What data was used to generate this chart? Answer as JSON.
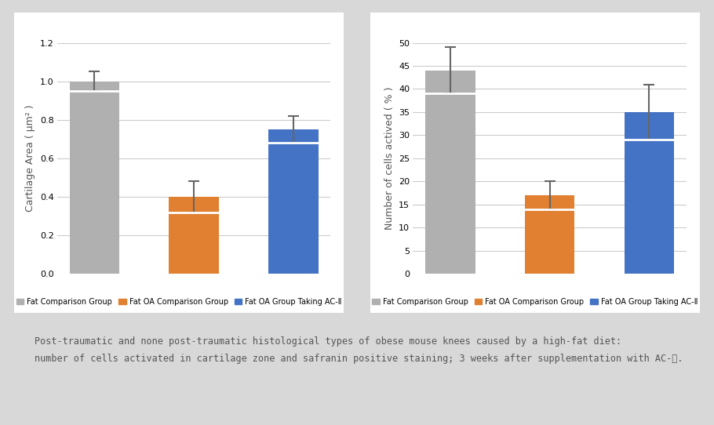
{
  "chart1": {
    "ylabel": "Cartilage Area ( μm² )",
    "categories": [
      "Fat Comparison Group",
      "Fat OA Comparison Group",
      "Fat OA Group Taking AC-Ⅱ"
    ],
    "values": [
      1.0,
      0.4,
      0.75
    ],
    "errors": [
      0.05,
      0.08,
      0.07
    ],
    "colors": [
      "#b0b0b0",
      "#e08030",
      "#4472c4"
    ],
    "ylim": [
      0,
      1.2
    ],
    "yticks": [
      0,
      0.2,
      0.4,
      0.6,
      0.8,
      1.0,
      1.2
    ],
    "legend_labels": [
      "Fat Comparison Group",
      "Fat OA Comparison Group",
      "Fat OA Group Taking AC-Ⅱ"
    ]
  },
  "chart2": {
    "ylabel": "Number of cells actived ( % )",
    "categories": [
      "Fat Comparison Group",
      "Fat OA Comparison Group",
      "Fat OA Group Taking AC-Ⅱ"
    ],
    "values": [
      44,
      17,
      35
    ],
    "errors": [
      5,
      3,
      6
    ],
    "colors": [
      "#b0b0b0",
      "#e08030",
      "#4472c4"
    ],
    "ylim": [
      0,
      50
    ],
    "yticks": [
      0,
      5,
      10,
      15,
      20,
      25,
      30,
      35,
      40,
      45,
      50
    ],
    "legend_labels": [
      "Fat Comparison Group",
      "Fat OA Comparison Group",
      "Fat OA Group Taking AC-Ⅱ"
    ]
  },
  "caption": "Post-traumatic and none post-traumatic histological types of obese mouse knees caused by a high-fat diet:\nnumber of cells activated in cartilage zone and safranin positive staining; 3 weeks after supplementation with AC-Ⅱ.",
  "bg_color": "#d8d8d8",
  "panel_color": "#ffffff",
  "bar_width": 0.5,
  "error_capsize": 5,
  "legend_fontsize": 7,
  "axis_label_fontsize": 9,
  "tick_fontsize": 8,
  "caption_fontsize": 8.5
}
